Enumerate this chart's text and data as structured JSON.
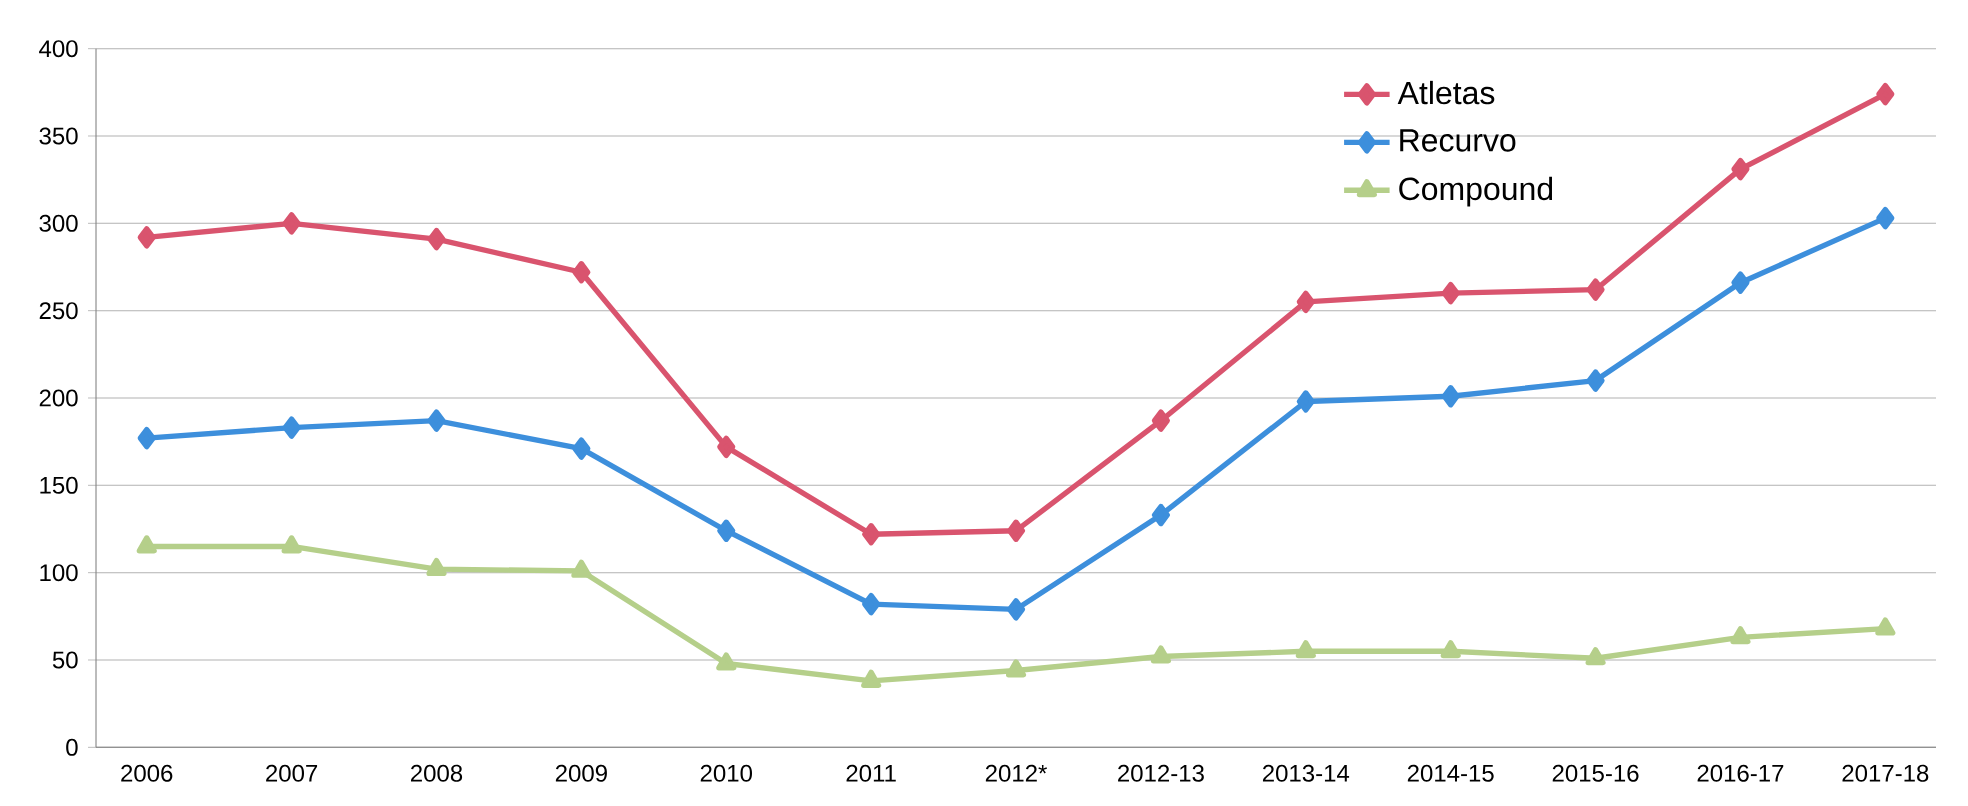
{
  "chart_data": {
    "type": "line",
    "categories": [
      "2006",
      "2007",
      "2008",
      "2009",
      "2010",
      "2011",
      "2012*",
      "2012-13",
      "2013-14",
      "2014-15",
      "2015-16",
      "2016-17",
      "2017-18"
    ],
    "series": [
      {
        "name": "Atletas",
        "color": "#d9546e",
        "marker": "diamond",
        "values": [
          292,
          300,
          291,
          272,
          172,
          122,
          124,
          187,
          255,
          260,
          262,
          331,
          374
        ]
      },
      {
        "name": "Recurvo",
        "color": "#3d8fdc",
        "marker": "diamond",
        "values": [
          177,
          183,
          187,
          171,
          124,
          82,
          79,
          133,
          198,
          201,
          210,
          266,
          303
        ]
      },
      {
        "name": "Compound",
        "color": "#b5cf8a",
        "marker": "triangle",
        "values": [
          115,
          115,
          102,
          101,
          48,
          38,
          44,
          52,
          55,
          55,
          51,
          63,
          68
        ]
      }
    ],
    "ylim": [
      0,
      400
    ],
    "yticks": [
      0,
      50,
      100,
      150,
      200,
      250,
      300,
      350,
      400
    ],
    "grid": "y",
    "legend": "top right",
    "line_style": "solid"
  }
}
